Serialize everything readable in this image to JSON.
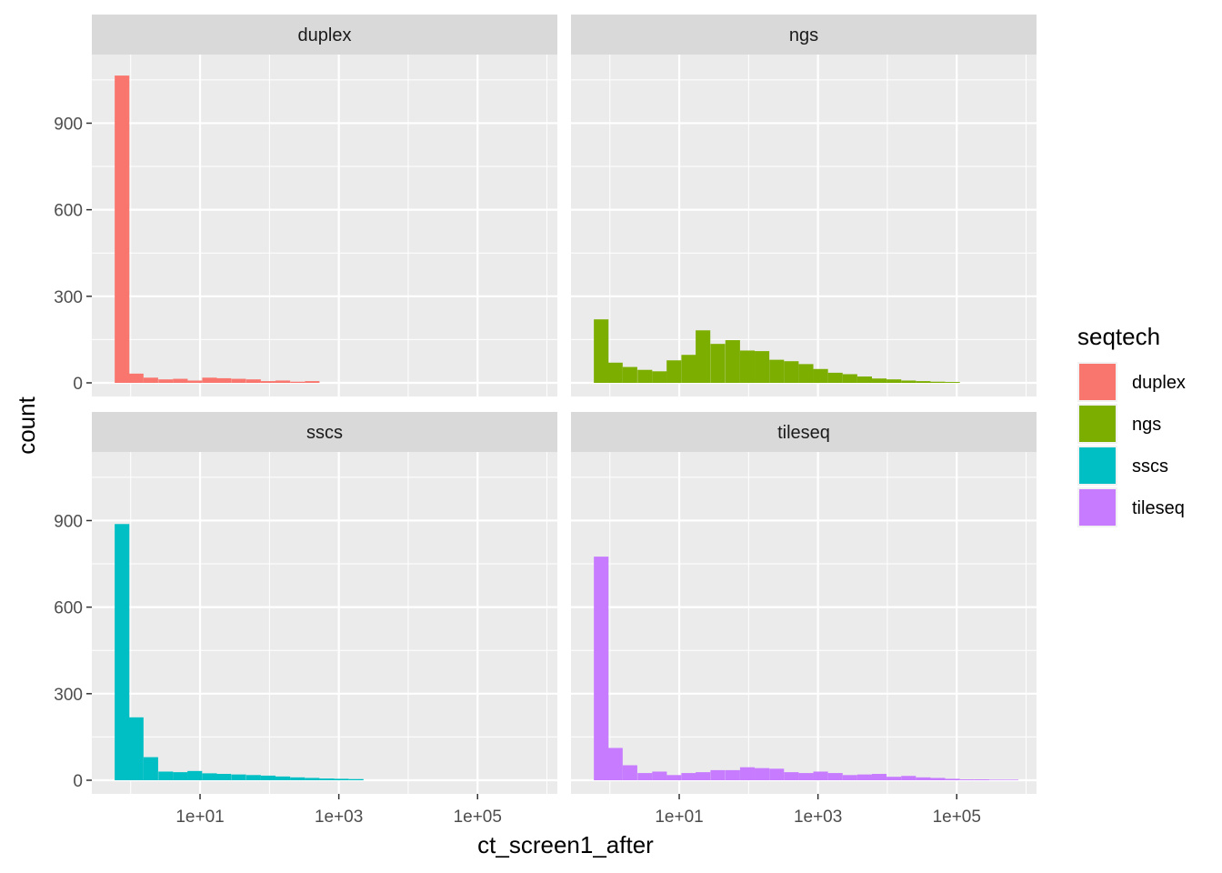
{
  "chart_data": {
    "type": "histogram",
    "facet_by": "seqtech",
    "xlabel": "ct_screen1_after",
    "ylabel": "count",
    "x_scale": "log10",
    "x_breaks": [
      10,
      1000,
      100000
    ],
    "x_tick_labels": [
      "1e+01",
      "1e+03",
      "1e+05"
    ],
    "ylim": [
      0,
      1100
    ],
    "y_breaks": [
      0,
      300,
      600,
      900
    ],
    "y_tick_labels": [
      "0",
      "300",
      "600",
      "900"
    ],
    "grid": true,
    "legend": {
      "title": "seqtech",
      "position": "right",
      "entries": [
        {
          "label": "duplex",
          "color": "#F8766D"
        },
        {
          "label": "ngs",
          "color": "#7CAE00"
        },
        {
          "label": "sscs",
          "color": "#00BFC4"
        },
        {
          "label": "tileseq",
          "color": "#C77CFF"
        }
      ]
    },
    "panels": [
      {
        "name": "duplex",
        "color": "#F8766D",
        "bins": [
          {
            "x": 0.75,
            "count": 1065
          },
          {
            "x": 1.2,
            "count": 32
          },
          {
            "x": 1.95,
            "count": 18
          },
          {
            "x": 3.2,
            "count": 12
          },
          {
            "x": 5.2,
            "count": 14
          },
          {
            "x": 8.4,
            "count": 8
          },
          {
            "x": 13.7,
            "count": 18
          },
          {
            "x": 22,
            "count": 16
          },
          {
            "x": 36,
            "count": 14
          },
          {
            "x": 59,
            "count": 12
          },
          {
            "x": 96,
            "count": 6
          },
          {
            "x": 156,
            "count": 8
          },
          {
            "x": 254,
            "count": 4
          },
          {
            "x": 413,
            "count": 6
          }
        ]
      },
      {
        "name": "ngs",
        "color": "#7CAE00",
        "bins": [
          {
            "x": 0.75,
            "count": 220
          },
          {
            "x": 1.2,
            "count": 70
          },
          {
            "x": 1.95,
            "count": 55
          },
          {
            "x": 3.2,
            "count": 45
          },
          {
            "x": 5.2,
            "count": 40
          },
          {
            "x": 8.4,
            "count": 78
          },
          {
            "x": 13.7,
            "count": 97
          },
          {
            "x": 22,
            "count": 182
          },
          {
            "x": 36,
            "count": 135
          },
          {
            "x": 59,
            "count": 148
          },
          {
            "x": 96,
            "count": 112
          },
          {
            "x": 156,
            "count": 110
          },
          {
            "x": 254,
            "count": 80
          },
          {
            "x": 413,
            "count": 75
          },
          {
            "x": 672,
            "count": 65
          },
          {
            "x": 1093,
            "count": 48
          },
          {
            "x": 1778,
            "count": 35
          },
          {
            "x": 2891,
            "count": 30
          },
          {
            "x": 4702,
            "count": 22
          },
          {
            "x": 7647,
            "count": 15
          },
          {
            "x": 12437,
            "count": 12
          },
          {
            "x": 20226,
            "count": 8
          },
          {
            "x": 32893,
            "count": 6
          },
          {
            "x": 53493,
            "count": 4
          },
          {
            "x": 86996,
            "count": 3
          }
        ]
      },
      {
        "name": "sscs",
        "color": "#00BFC4",
        "bins": [
          {
            "x": 0.75,
            "count": 888
          },
          {
            "x": 1.2,
            "count": 218
          },
          {
            "x": 1.95,
            "count": 80
          },
          {
            "x": 3.2,
            "count": 30
          },
          {
            "x": 5.2,
            "count": 28
          },
          {
            "x": 8.4,
            "count": 32
          },
          {
            "x": 13.7,
            "count": 24
          },
          {
            "x": 22,
            "count": 22
          },
          {
            "x": 36,
            "count": 20
          },
          {
            "x": 59,
            "count": 18
          },
          {
            "x": 96,
            "count": 16
          },
          {
            "x": 156,
            "count": 13
          },
          {
            "x": 254,
            "count": 10
          },
          {
            "x": 413,
            "count": 8
          },
          {
            "x": 672,
            "count": 6
          },
          {
            "x": 1093,
            "count": 5
          },
          {
            "x": 1778,
            "count": 4
          }
        ]
      },
      {
        "name": "tileseq",
        "color": "#C77CFF",
        "bins": [
          {
            "x": 0.75,
            "count": 775
          },
          {
            "x": 1.2,
            "count": 112
          },
          {
            "x": 1.95,
            "count": 52
          },
          {
            "x": 3.2,
            "count": 25
          },
          {
            "x": 5.2,
            "count": 30
          },
          {
            "x": 8.4,
            "count": 18
          },
          {
            "x": 13.7,
            "count": 25
          },
          {
            "x": 22,
            "count": 28
          },
          {
            "x": 36,
            "count": 35
          },
          {
            "x": 59,
            "count": 35
          },
          {
            "x": 96,
            "count": 45
          },
          {
            "x": 156,
            "count": 42
          },
          {
            "x": 254,
            "count": 40
          },
          {
            "x": 413,
            "count": 28
          },
          {
            "x": 672,
            "count": 25
          },
          {
            "x": 1093,
            "count": 30
          },
          {
            "x": 1778,
            "count": 25
          },
          {
            "x": 2891,
            "count": 18
          },
          {
            "x": 4702,
            "count": 20
          },
          {
            "x": 7647,
            "count": 22
          },
          {
            "x": 12437,
            "count": 12
          },
          {
            "x": 20226,
            "count": 15
          },
          {
            "x": 32893,
            "count": 10
          },
          {
            "x": 53493,
            "count": 8
          },
          {
            "x": 86996,
            "count": 5
          },
          {
            "x": 141473,
            "count": 3
          },
          {
            "x": 230068,
            "count": 3
          },
          {
            "x": 374142,
            "count": 2
          },
          {
            "x": 608439,
            "count": 2
          }
        ]
      }
    ]
  }
}
